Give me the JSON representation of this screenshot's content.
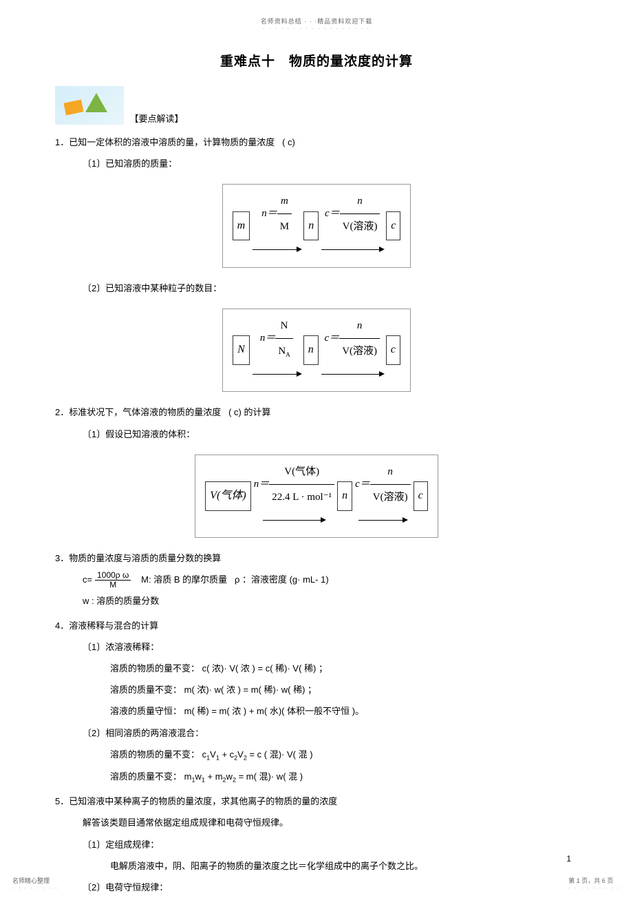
{
  "header": {
    "text": "名师资料总结 · · ·精品资料欢迎下载"
  },
  "title": "重难点十　物质的量浓度的计算",
  "keypoint_label": "【要点解读】",
  "s1": {
    "heading": "1．已知一定体积的溶液中溶质的量，计算物质的量浓度",
    "heading_suffix": "( c)",
    "sub1": "〔1〕已知溶质的质量：",
    "sub2": "〔2〕已知溶液中某种粒子的数目："
  },
  "s2": {
    "heading": "2．标准状况下，气体溶液的物质的量浓度",
    "heading_suffix": "( c) 的计算",
    "sub1": "〔1〕假设已知溶液的体积："
  },
  "s3": {
    "heading": "3．物质的量浓度与溶质的质量分数的换算",
    "formula_prefix": "c=",
    "formula_num": "1000ρ ω",
    "formula_den": "M",
    "desc1": "M: 溶质  B 的摩尔质量",
    "desc2": "ρ ：溶液密度 (g· mL-  1)",
    "desc3": "w : 溶质的质量分数"
  },
  "s4": {
    "heading": "4．溶液稀释与混合的计算",
    "sub1": "〔1〕浓溶液稀释：",
    "line1": "溶质的物质的量不变：   c( 浓)·  V( 浓 ) = c( 稀)·  V( 稀) ；",
    "line2": "溶质的质量不变：  m( 浓)·  w( 浓 ) = m( 稀)·  w( 稀) ；",
    "line3": "溶液的质量守恒：   m( 稀) = m( 浓 ) + m( 水)( 体积一般不守恒   )。",
    "sub2": "〔2〕相同溶质的两溶液混合：",
    "line4a": "溶质的物质的量不变：   c",
    "line4b": "V",
    "line4c": " + c",
    "line4d": "V",
    "line4e": " = c ( 混)·  V(  混 )",
    "line5a": "溶质的质量不变：  m",
    "line5b": "w",
    "line5c": " + m",
    "line5d": "w",
    "line5e": " = m( 混)·  w( 混 )"
  },
  "s5": {
    "heading": "5．已知溶液中某种离子的物质的量浓度，求其他离子的物质的量的浓度",
    "line1": "解答该类题目通常依据定组成规律和电荷守恒规律。",
    "sub1": "〔1〕定组成规律：",
    "line2": "电解质溶液中，阴、阳离子的物质的量浓度之比＝化学组成中的离子个数之比。",
    "sub2": "〔2〕电荷守恒规律："
  },
  "formula_labels": {
    "m": "m",
    "n": "n",
    "c": "c",
    "N": "N",
    "NA": "A",
    "V_gas": "V(气体)",
    "V_sol": "V(溶液)",
    "n_eq_m_M": "n＝",
    "c_eq": "c＝",
    "n_eq_N_NA": "n＝",
    "n_eq_V": "n＝",
    "std_mol": "22.4 L · mol⁻¹"
  },
  "page_num": "1",
  "footer_left": "名师精心整理",
  "footer_right": "第 1 页，共 6 页"
}
